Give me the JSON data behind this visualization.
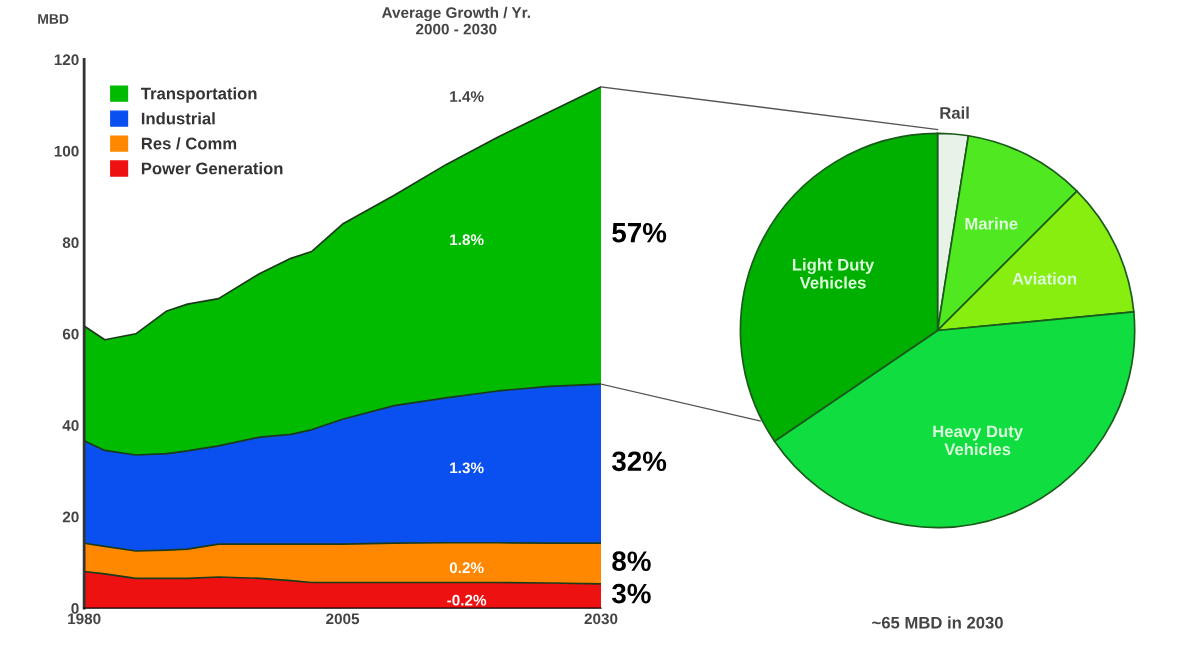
{
  "chart_data": [
    {
      "type": "area",
      "stacked": true,
      "ylabel": "MBD",
      "x": [
        1980,
        1982,
        1985,
        1988,
        1990,
        1993,
        1997,
        2000,
        2002,
        2005,
        2010,
        2015,
        2020,
        2025,
        2030
      ],
      "xlim": [
        1980,
        2030
      ],
      "xticks": [
        1980,
        2005,
        2030
      ],
      "ylim": [
        0,
        120
      ],
      "yticks": [
        0,
        20,
        40,
        60,
        80,
        100,
        120
      ],
      "grid": false,
      "legend": "top left",
      "series": [
        {
          "name": "Power Generation",
          "color": "#ee1111",
          "values": [
            8,
            7.5,
            6.5,
            6.5,
            6.5,
            6.8,
            6.5,
            6,
            5.6,
            5.6,
            5.6,
            5.6,
            5.6,
            5.5,
            5.3
          ]
        },
        {
          "name": "Res / Comm",
          "color": "#ff8800",
          "values": [
            6.2,
            6,
            6,
            6.2,
            6.4,
            7.2,
            7.5,
            8,
            8.4,
            8.4,
            8.6,
            8.7,
            8.7,
            8.7,
            8.9
          ]
        },
        {
          "name": "Industrial",
          "color": "#0a50f0",
          "values": [
            22.4,
            21,
            21,
            21.1,
            21.5,
            21.5,
            23.4,
            24,
            25,
            27.3,
            30.1,
            31.7,
            33.2,
            34.3,
            34.8
          ]
        },
        {
          "name": "Transportation",
          "color": "#00bb00",
          "values": [
            25.1,
            24.2,
            26.5,
            31.2,
            32.1,
            32.2,
            35.8,
            38.5,
            39,
            42.7,
            46,
            51,
            55.5,
            60,
            65
          ]
        }
      ],
      "annotations": [
        "Average Growth / Yr.\n2000 - 2030",
        "1.4%",
        "1.8%",
        "1.3%",
        "0.2%",
        "-0.2%",
        "57%",
        "32%",
        "8%",
        "3%"
      ]
    },
    {
      "type": "pie",
      "categories": [
        "Rail",
        "Marine",
        "Aviation",
        "Heavy Duty\nVehicles",
        "Light Duty\nVehicles"
      ],
      "values": [
        2.5,
        10,
        11,
        42,
        34.5
      ],
      "colors": [
        "#e8f2e8",
        "#50e820",
        "#88ee10",
        "#10dd40",
        "#00b000"
      ],
      "annotations": [
        "~65 MBD in 2030"
      ]
    }
  ]
}
